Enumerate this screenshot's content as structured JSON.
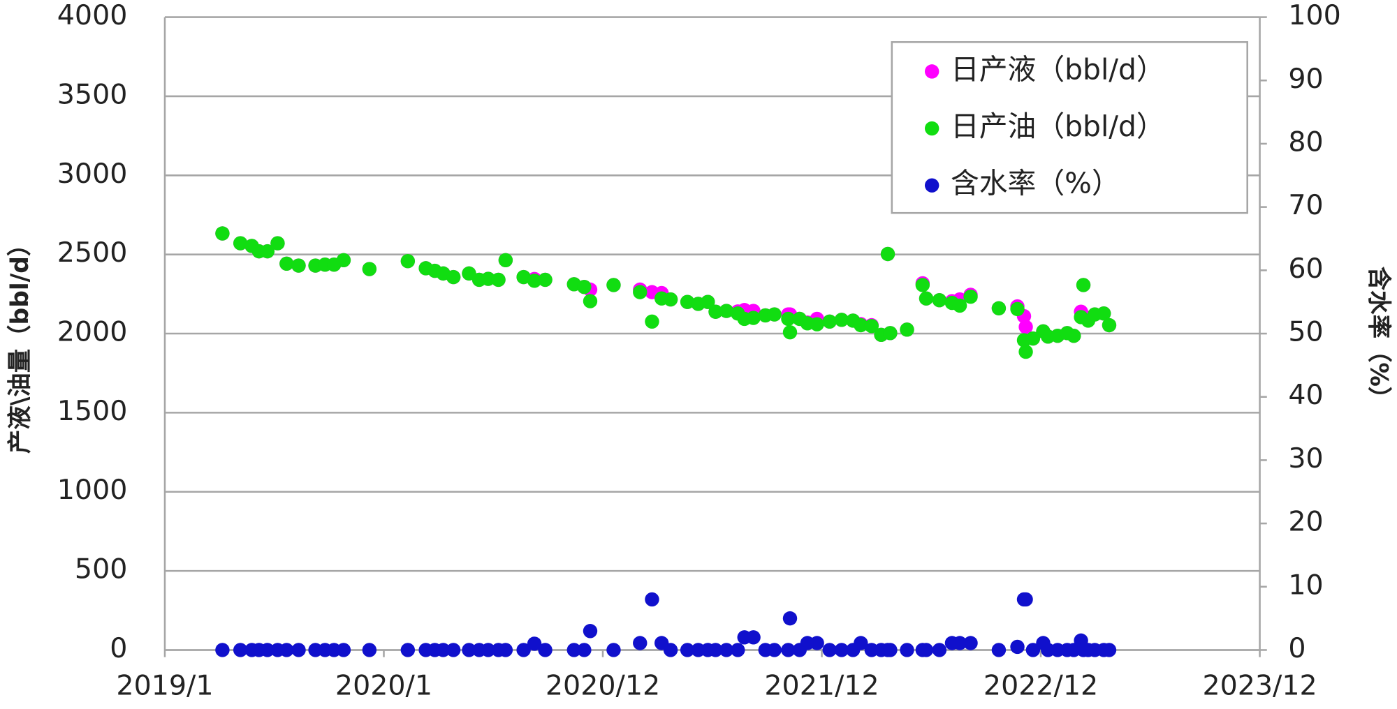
{
  "chart_data": {
    "type": "scatter",
    "y_label": "产液\\油量（bbl/d）",
    "y2_label": "含水率（%）",
    "x": [
      43562,
      43592,
      43611,
      43623,
      43637,
      43654,
      43669,
      43689,
      43717,
      43733,
      43748,
      43764,
      43807,
      43871,
      43901,
      43916,
      43930,
      43947,
      43973,
      43990,
      44005,
      44022,
      44034,
      44064,
      44082,
      44100,
      44148,
      44165,
      44175,
      44214,
      44258,
      44278,
      44294,
      44309,
      44337,
      44355,
      44371,
      44384,
      44402,
      44421,
      44432,
      44447,
      44467,
      44482,
      44505,
      44508,
      44524,
      44537,
      44553,
      44574,
      44594,
      44613,
      44626,
      44644,
      44660,
      44671,
      44675,
      44703,
      44729,
      44735,
      44757,
      44778,
      44791,
      44809,
      44856,
      44887,
      44898,
      44901,
      44913,
      44930,
      44938,
      44954,
      44970,
      44981,
      44993,
      44997,
      45005,
      45016,
      45031,
      45040
    ],
    "series": [
      {
        "name": "日产液（bbl/d）",
        "color": "#ff00ff",
        "values": [
          2633,
          2571,
          2554,
          2520,
          2520,
          2571,
          2442,
          2430,
          2430,
          2436,
          2436,
          2464,
          2408,
          2458,
          2413,
          2397,
          2380,
          2357,
          2380,
          2340,
          2346,
          2340,
          2464,
          2357,
          2345,
          2340,
          2312,
          2295,
          2278,
          2307,
          2278,
          2262,
          2256,
          2216,
          2200,
          2188,
          2200,
          2138,
          2143,
          2140,
          2149,
          2143,
          2115,
          2121,
          2121,
          2121,
          2093,
          2070,
          2093,
          2076,
          2087,
          2082,
          2060,
          2053,
          1992,
          2503,
          2003,
          2025,
          2318,
          2222,
          2211,
          2205,
          2216,
          2245,
          2160,
          2172,
          2110,
          2042,
          1969,
          2014,
          1981,
          1986,
          2003,
          1986,
          2138,
          2307,
          2100,
          2121,
          2127,
          2053
        ]
      },
      {
        "name": "日产油（bbl/d）",
        "color": "#11dd11",
        "values": [
          2633,
          2571,
          2554,
          2520,
          2520,
          2571,
          2442,
          2430,
          2430,
          2436,
          2436,
          2464,
          2408,
          2458,
          2413,
          2397,
          2380,
          2357,
          2380,
          2340,
          2346,
          2340,
          2464,
          2357,
          2334,
          2340,
          2312,
          2295,
          2205,
          2307,
          2262,
          2076,
          2222,
          2216,
          2200,
          2188,
          2200,
          2138,
          2143,
          2127,
          2093,
          2099,
          2115,
          2121,
          2093,
          2008,
          2093,
          2065,
          2059,
          2076,
          2087,
          2082,
          2053,
          2048,
          1992,
          2503,
          2003,
          2025,
          2307,
          2222,
          2211,
          2194,
          2177,
          2233,
          2160,
          2155,
          1958,
          1885,
          1969,
          2014,
          1981,
          1986,
          2003,
          1986,
          2104,
          2307,
          2082,
          2121,
          2127,
          2053
        ]
      },
      {
        "name": "含水率（%）",
        "color": "#1010cc",
        "axis": "y2",
        "values": [
          0,
          0,
          0,
          0,
          0,
          0,
          0,
          0,
          0,
          0,
          0,
          0,
          0,
          0,
          0,
          0,
          0,
          0,
          0,
          0,
          0,
          0,
          0,
          0,
          1,
          0,
          0,
          0,
          3,
          0,
          1.1,
          8,
          1.1,
          0,
          0,
          0,
          0,
          0,
          0,
          0,
          2,
          2,
          0,
          0,
          0,
          5,
          0,
          1.1,
          1.1,
          0,
          0,
          0,
          1.1,
          0,
          0,
          0,
          0,
          0,
          0,
          0,
          0,
          1.1,
          1.1,
          1.1,
          0,
          0.5,
          8,
          8,
          0,
          1.1,
          0,
          0,
          0,
          0,
          1.5,
          0,
          0,
          0,
          0,
          0
        ]
      }
    ],
    "xlim": [
      43466,
      45291
    ],
    "xticks": [
      {
        "value": 43466,
        "label": "2019/1"
      },
      {
        "value": 43831,
        "label": "2020/1"
      },
      {
        "value": 44196,
        "label": "2020/12"
      },
      {
        "value": 44561,
        "label": "2021/12"
      },
      {
        "value": 44926,
        "label": "2022/12"
      },
      {
        "value": 45291,
        "label": "2023/12"
      }
    ],
    "ylim": [
      0,
      4000
    ],
    "yticks": [
      0,
      500,
      1000,
      1500,
      2000,
      2500,
      3000,
      3500,
      4000
    ],
    "y2lim": [
      0,
      100
    ],
    "y2ticks": [
      0,
      10,
      20,
      30,
      40,
      50,
      60,
      70,
      80,
      90,
      100
    ],
    "grid": true,
    "legend": "top-right"
  }
}
